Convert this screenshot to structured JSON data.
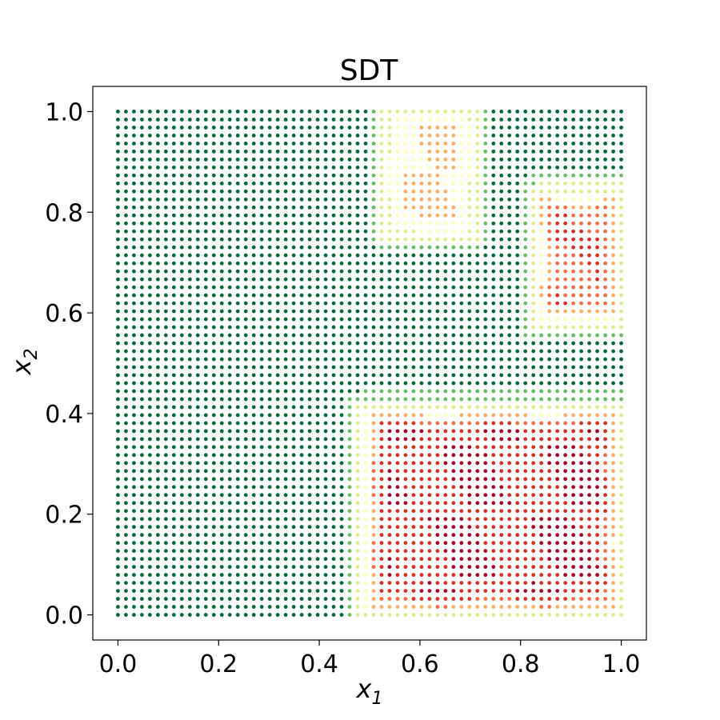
{
  "chart_data": {
    "type": "scatter",
    "title": "SDT",
    "xlabel": "x",
    "xlabel_subscript": "1",
    "ylabel": "x",
    "ylabel_subscript": "2",
    "xlim": [
      -0.05,
      1.05
    ],
    "ylim": [
      -0.05,
      1.05
    ],
    "xticks": [
      0.0,
      0.2,
      0.4,
      0.6,
      0.8,
      1.0
    ],
    "yticks": [
      0.0,
      0.2,
      0.4,
      0.6,
      0.8,
      1.0
    ],
    "xtick_labels": [
      "0.0",
      "0.2",
      "0.4",
      "0.6",
      "0.8",
      "1.0"
    ],
    "ytick_labels": [
      "0.0",
      "0.2",
      "0.4",
      "0.6",
      "0.8",
      "1.0"
    ],
    "grid": false,
    "legend": "none",
    "point_grid": {
      "start": 0.0,
      "stop": 1.0,
      "count": 64
    },
    "colormap": [
      "#006837",
      "#66bd63",
      "#d9ef8b",
      "#ffffbf",
      "#fdae61",
      "#f46d43",
      "#d73027",
      "#a50026"
    ],
    "regions": [
      {
        "label": "bottom-right block",
        "x": [
          0.49,
          1.0
        ],
        "y": [
          0.0,
          0.41
        ],
        "peak_value": 1.0,
        "core_value": 0.92
      },
      {
        "label": "top-middle block",
        "x": [
          0.53,
          0.71
        ],
        "y": [
          0.76,
          1.0
        ],
        "peak_value": 0.62,
        "core_value": 0.5
      },
      {
        "label": "right-middle block",
        "x": [
          0.83,
          1.0
        ],
        "y": [
          0.58,
          0.84
        ],
        "peak_value": 0.95,
        "core_value": 0.8
      }
    ]
  }
}
